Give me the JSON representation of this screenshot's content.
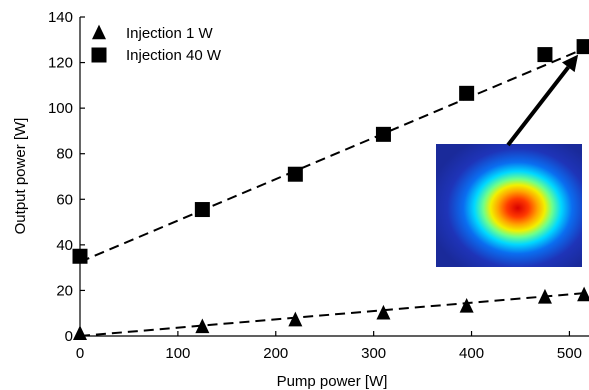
{
  "chart_data": {
    "type": "scatter",
    "title": "",
    "xlabel": "Pump power [W]",
    "ylabel": "Output power [W]",
    "xlim": [
      0,
      520
    ],
    "ylim": [
      0,
      140
    ],
    "xticks": [
      0,
      100,
      200,
      300,
      400,
      500
    ],
    "yticks": [
      0,
      20,
      40,
      60,
      80,
      100,
      120,
      140
    ],
    "grid": false,
    "legend_position": "top-left",
    "series": [
      {
        "name": "Injection 1 W",
        "marker": "triangle",
        "color": "#000000",
        "x": [
          0,
          125,
          220,
          310,
          395,
          475,
          515
        ],
        "y": [
          1,
          4,
          7,
          10,
          13,
          17,
          18
        ],
        "fit_line": {
          "style": "dashed",
          "x": [
            0,
            520
          ],
          "y": [
            0,
            19
          ]
        }
      },
      {
        "name": "Injection 40 W",
        "marker": "square",
        "color": "#000000",
        "x": [
          0,
          125,
          220,
          310,
          395,
          475,
          515
        ],
        "y": [
          35,
          55.5,
          71,
          88.5,
          106.5,
          123.5,
          127
        ],
        "fit_line": {
          "style": "dashed",
          "x": [
            0,
            520
          ],
          "y": [
            32.5,
            127
          ]
        }
      }
    ],
    "annotations": [
      {
        "type": "arrow",
        "from": [
          360,
          80
        ],
        "to": [
          515,
          127
        ],
        "description": "beam profile inset (blue background with red/yellow central spot)"
      }
    ]
  }
}
